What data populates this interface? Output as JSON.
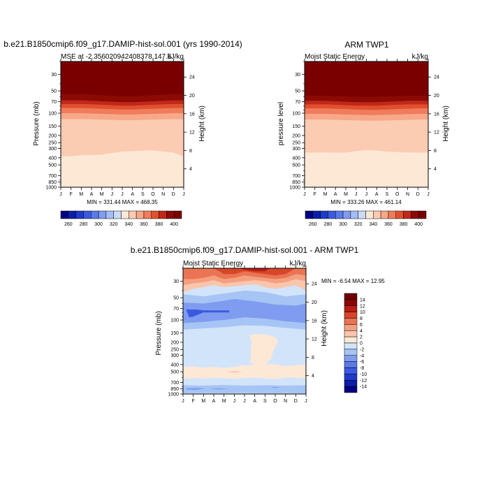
{
  "chart_data": [
    {
      "type": "contour",
      "title": "b.e21.B1850cmip6.f09_g17.DAMIP-hist-sol.001 (yrs 1990-2014)",
      "subtitle_left": "MSE at -2.356020942408378,147.5",
      "subtitle_right": "kJ/kg",
      "ylabel": "Pressure (mb)",
      "ylabel_right": "Height (km)",
      "x_ticks": [
        "J",
        "F",
        "M",
        "A",
        "M",
        "J",
        "J",
        "A",
        "S",
        "O",
        "N",
        "D",
        "J"
      ],
      "y_ticks": [
        "30",
        "50",
        "70",
        "100",
        "150",
        "200",
        "250",
        "300",
        "400",
        "500",
        "700",
        "850",
        "1000"
      ],
      "y_ticks_right": [
        "24",
        "20",
        "16",
        "12",
        "8",
        "4"
      ],
      "ylim": [
        1000,
        20
      ],
      "stats": "MIN = 331.44 MAX = 468.35",
      "levels": [
        260,
        270,
        280,
        290,
        300,
        310,
        320,
        330,
        340,
        350,
        360,
        370,
        380,
        390,
        400
      ],
      "label_levels": [
        260,
        280,
        300,
        320,
        340,
        360,
        380,
        400
      ],
      "boundaries_mb": [
        {
          "level": 400,
          "p": [
            55,
            55,
            55,
            56,
            57,
            58,
            59,
            59,
            58,
            57,
            56,
            55,
            55
          ]
        },
        {
          "level": 390,
          "p": [
            67,
            67,
            67,
            68,
            69,
            70,
            71,
            71,
            70,
            69,
            68,
            67,
            67
          ]
        },
        {
          "level": 380,
          "p": [
            75,
            75,
            75,
            76,
            77,
            78,
            79,
            79,
            78,
            77,
            76,
            75,
            75
          ]
        },
        {
          "level": 370,
          "p": [
            85,
            85,
            85,
            86,
            87,
            88,
            89,
            89,
            88,
            87,
            86,
            85,
            85
          ]
        },
        {
          "level": 360,
          "p": [
            100,
            100,
            100,
            101,
            102,
            103,
            104,
            104,
            103,
            102,
            101,
            100,
            100
          ]
        },
        {
          "level": 350,
          "p": [
            120,
            120,
            120,
            121,
            122,
            123,
            124,
            124,
            123,
            122,
            121,
            120,
            120
          ]
        },
        {
          "level": 340,
          "p": [
            385,
            380,
            370,
            368,
            362,
            345,
            330,
            325,
            320,
            318,
            330,
            340,
            385
          ]
        },
        {
          "level": 330,
          "p": [
            960,
            958,
            962,
            960,
            958,
            955,
            962,
            958,
            960,
            962,
            960,
            958,
            960
          ]
        }
      ]
    },
    {
      "type": "contour",
      "title": "ARM TWP1",
      "subtitle_left": "Moist Static Energy",
      "subtitle_right": "kJ/kg",
      "ylabel": "pressure level",
      "ylabel_right": "Height (km)",
      "x_ticks": [
        "J",
        "F",
        "M",
        "A",
        "M",
        "J",
        "J",
        "A",
        "S",
        "O",
        "N",
        "D",
        "J"
      ],
      "y_ticks": [
        "30",
        "50",
        "70",
        "100",
        "150",
        "200",
        "250",
        "300",
        "400",
        "500",
        "700",
        "850",
        "1000"
      ],
      "y_ticks_right": [
        "24",
        "20",
        "16",
        "12",
        "8",
        "4"
      ],
      "ylim": [
        1000,
        20
      ],
      "stats": "MIN = 333.26 MAX = 461.14",
      "levels": [
        260,
        270,
        280,
        290,
        300,
        310,
        320,
        330,
        340,
        350,
        360,
        370,
        380,
        390,
        400
      ],
      "label_levels": [
        260,
        280,
        300,
        320,
        340,
        360,
        380,
        400
      ],
      "boundaries_mb": [
        {
          "level": 400,
          "p": [
            58,
            58,
            58,
            59,
            59,
            60,
            60,
            60,
            59,
            59,
            58,
            58,
            58
          ]
        },
        {
          "level": 390,
          "p": [
            68,
            68,
            68,
            69,
            70,
            71,
            71,
            71,
            70,
            69,
            68,
            68,
            68
          ]
        },
        {
          "level": 380,
          "p": [
            76,
            76,
            76,
            77,
            78,
            79,
            79,
            79,
            78,
            77,
            76,
            76,
            76
          ]
        },
        {
          "level": 370,
          "p": [
            86,
            86,
            86,
            87,
            88,
            89,
            90,
            90,
            89,
            88,
            87,
            86,
            86
          ]
        },
        {
          "level": 360,
          "p": [
            102,
            102,
            102,
            103,
            104,
            105,
            106,
            106,
            105,
            104,
            103,
            102,
            102
          ]
        },
        {
          "level": 350,
          "p": [
            122,
            122,
            122,
            123,
            124,
            125,
            126,
            126,
            125,
            124,
            123,
            122,
            122
          ]
        },
        {
          "level": 340,
          "p": [
            340,
            340,
            338,
            342,
            340,
            325,
            315,
            320,
            330,
            335,
            338,
            340,
            340
          ]
        },
        {
          "level": 330,
          "p": [
            920,
            915,
            925,
            918,
            912,
            920,
            928,
            918,
            925,
            915,
            920,
            918,
            920
          ]
        }
      ]
    },
    {
      "type": "contour",
      "title": "b.e21.B1850cmip6.f09_g17.DAMIP-hist-sol.001 - ARM TWP1",
      "subtitle_left": "Moist Static Energy",
      "subtitle_right": "kJ/kg",
      "ylabel": "Pressure (mb)",
      "ylabel_right": "Height (km)",
      "x_ticks": [
        "J",
        "F",
        "M",
        "A",
        "M",
        "J",
        "J",
        "A",
        "S",
        "O",
        "N",
        "D",
        "J"
      ],
      "y_ticks": [
        "30",
        "50",
        "70",
        "100",
        "150",
        "200",
        "250",
        "300",
        "400",
        "500",
        "700",
        "850",
        "1000"
      ],
      "y_ticks_right": [
        "24",
        "20",
        "16",
        "12",
        "8",
        "4"
      ],
      "ylim": [
        1000,
        20
      ],
      "stats": "MIN =  -6.54 MAX =  12.95",
      "levels": [
        -14,
        -12,
        -10,
        -8,
        -6,
        -4,
        -2,
        0,
        2,
        4,
        6,
        8,
        10,
        12,
        14
      ],
      "label_levels": [
        14,
        12,
        10,
        8,
        6,
        4,
        2,
        0,
        -2,
        -4,
        -6,
        -8,
        -10,
        -12,
        -14
      ]
    }
  ],
  "palette": {
    "msecolors": [
      "#000080",
      "#0a1ea8",
      "#1e3cc8",
      "#3c5ae0",
      "#5a7ae8",
      "#809cf0",
      "#a6bcf4",
      "#cadaf8",
      "#fde8d6",
      "#fbcbb2",
      "#f7a888",
      "#f07c5c",
      "#e0502e",
      "#c0281a",
      "#8c0a04",
      "#7a0000"
    ],
    "diffcolors": [
      "#000080",
      "#0a1ea8",
      "#1e3cc8",
      "#3c5ae0",
      "#5a7ae8",
      "#809cf0",
      "#a6c4f4",
      "#d2e4fa",
      "#fde8d6",
      "#f9c6ac",
      "#f4a080",
      "#ea7454",
      "#d8462a",
      "#b81e12",
      "#8c0404",
      "#6e0000"
    ]
  }
}
